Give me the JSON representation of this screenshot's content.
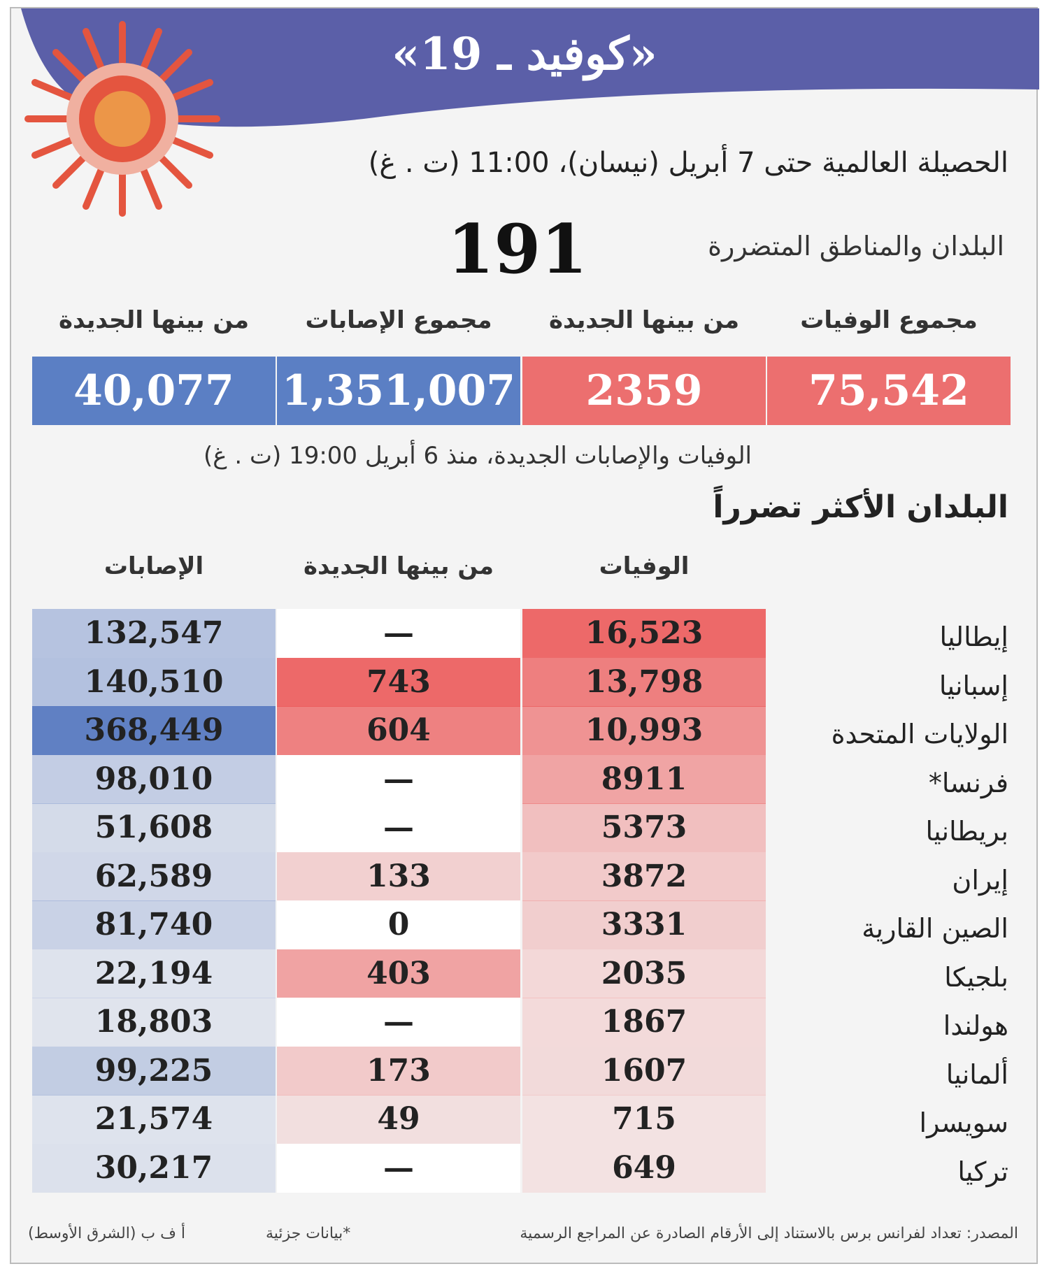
{
  "header": {
    "title": "«كوفيد ـ 19»",
    "subtitle": "الحصيلة العالمية حتى 7 أبريل (نيسان)، 11:00 (ت . غ)",
    "countries_label": "البلدان والمناطق المتضررة",
    "countries_count": "191"
  },
  "totals": [
    {
      "label": "مجموع الوفيات",
      "value": "75,542"
    },
    {
      "label": "من بينها الجديدة",
      "value": "2359"
    },
    {
      "label": "مجموع الإصابات",
      "value": "1,351,007"
    },
    {
      "label": "من بينها الجديدة",
      "value": "40,077"
    }
  ],
  "note": "الوفيات والإصابات الجديدة، منذ 6 أبريل 19:00 (ت . غ)",
  "table": {
    "title": "البلدان الأكثر تضرراً",
    "columns": [
      "الوفيات",
      "من بينها الجديدة",
      "الإصابات"
    ],
    "rows": [
      [
        "إيطاليا",
        "16,523",
        "—",
        "132,547"
      ],
      [
        "إسبانيا",
        "13,798",
        "743",
        "140,510"
      ],
      [
        "الولايات المتحدة",
        "10,993",
        "604",
        "368,449"
      ],
      [
        "فرنسا*",
        "8911",
        "—",
        "98,010"
      ],
      [
        "بريطانيا",
        "5373",
        "—",
        "51,608"
      ],
      [
        "إيران",
        "3872",
        "133",
        "62,589"
      ],
      [
        "الصين القارية",
        "3331",
        "0",
        "81,740"
      ],
      [
        "بلجيكا",
        "2035",
        "403",
        "22,194"
      ],
      [
        "هولندا",
        "1867",
        "—",
        "18,803"
      ],
      [
        "ألمانيا",
        "1607",
        "173",
        "99,225"
      ],
      [
        "سويسرا",
        "715",
        "49",
        "21,574"
      ],
      [
        "تركيا",
        "649",
        "—",
        "30,217"
      ]
    ]
  },
  "footer": {
    "source": "المصدر: تعداد لفرانس برس بالاستناد إلى الأرقام الصادرة عن المراجع الرسمية",
    "partial": "*بيانات جزئية",
    "credit": "أ ف ب (الشرق الأوسط)"
  }
}
